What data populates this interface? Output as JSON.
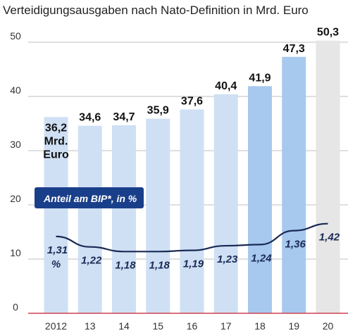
{
  "title": "Verteidigungsausgaben nach Nato-Definition in Mrd. Euro",
  "chart_data": {
    "type": "bar",
    "title": "Verteidigungsausgaben nach Nato-Definition in Mrd. Euro",
    "categories": [
      "2012",
      "13",
      "14",
      "15",
      "16",
      "17",
      "18",
      "19",
      "20"
    ],
    "values": [
      36.2,
      34.6,
      34.7,
      35.9,
      37.6,
      40.4,
      41.9,
      47.3,
      50.3
    ],
    "value_labels": [
      "36,2",
      "34,6",
      "34,7",
      "35,9",
      "37,6",
      "40,4",
      "41,9",
      "47,3",
      "50,3"
    ],
    "first_value_unit": [
      "Mrd.",
      "Euro"
    ],
    "bar_colors": [
      "#cfe0f5",
      "#cfe0f5",
      "#cfe0f5",
      "#cfe0f5",
      "#cfe0f5",
      "#cfe0f5",
      "#a7c9ee",
      "#a7c9ee",
      "#e6e6e6"
    ],
    "ylim": [
      0,
      50
    ],
    "yticks": [
      "0",
      "10",
      "20",
      "30",
      "40",
      "50"
    ],
    "grid": true,
    "line_series": {
      "name": "Anteil am BIP*, in %",
      "values": [
        1.31,
        1.22,
        1.18,
        1.18,
        1.19,
        1.23,
        1.24,
        1.36,
        1.42
      ],
      "labels": [
        "1,31",
        "1,22",
        "1,18",
        "1,18",
        "1,19",
        "1,23",
        "1,24",
        "1,36",
        "1,42"
      ],
      "first_label_unit": "%",
      "color": "#1a2a55"
    },
    "colors": {
      "baseline": "#d04050",
      "grid": "#aaaaaa",
      "legend_bg": "#1a3f8a"
    }
  }
}
